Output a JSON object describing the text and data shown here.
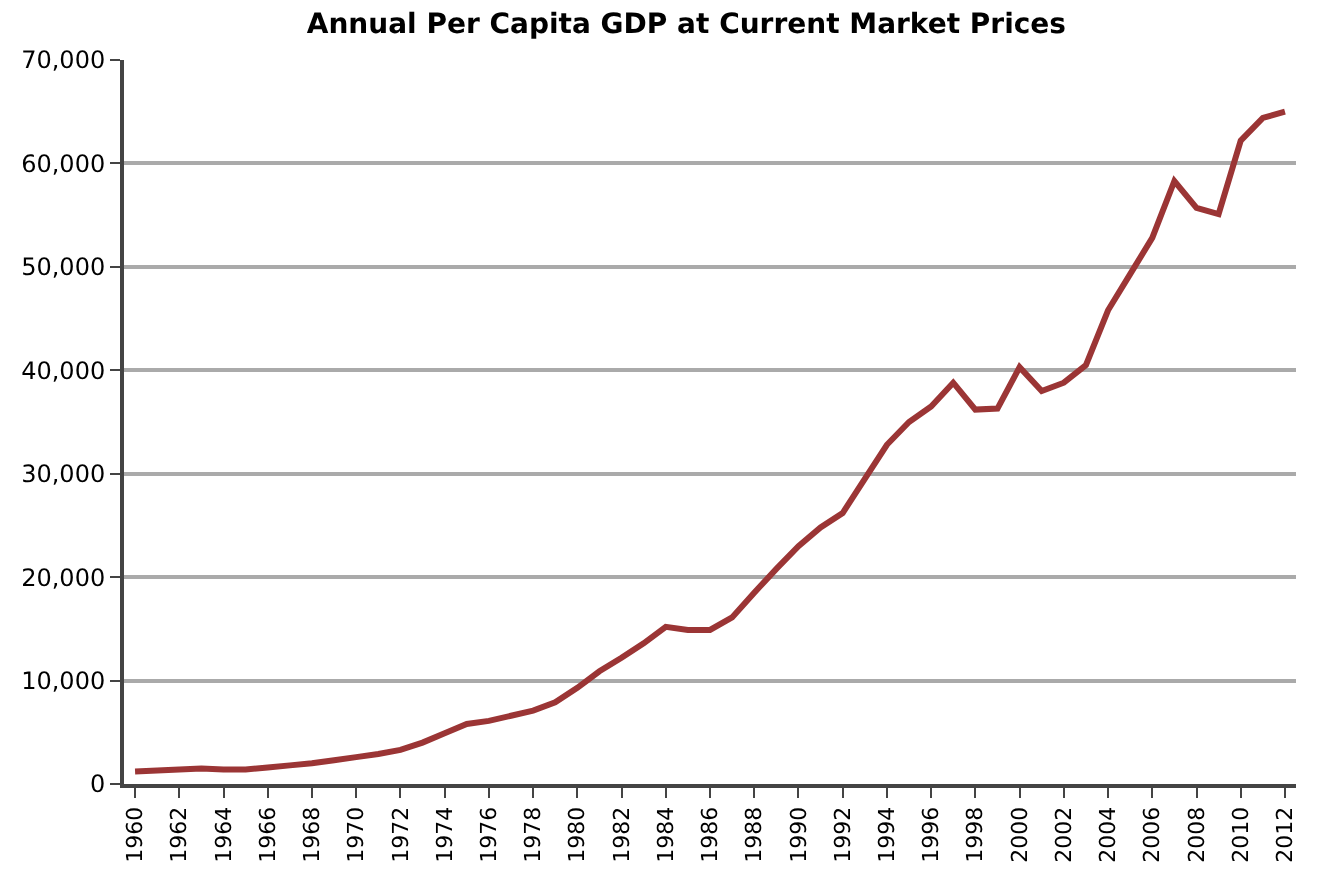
{
  "chart_data": {
    "type": "line",
    "title": "Annual Per Capita GDP at Current Market Prices",
    "x": [
      1960,
      1961,
      1962,
      1963,
      1964,
      1965,
      1966,
      1967,
      1968,
      1969,
      1970,
      1971,
      1972,
      1973,
      1974,
      1975,
      1976,
      1977,
      1978,
      1979,
      1980,
      1981,
      1982,
      1983,
      1984,
      1985,
      1986,
      1987,
      1988,
      1989,
      1990,
      1991,
      1992,
      1993,
      1994,
      1995,
      1996,
      1997,
      1998,
      1999,
      2000,
      2001,
      2002,
      2003,
      2004,
      2005,
      2006,
      2007,
      2008,
      2009,
      2010,
      2011,
      2012
    ],
    "series": [
      {
        "color": "#9b3535",
        "values": [
          1200,
          1300,
          1400,
          1500,
          1400,
          1400,
          1600,
          1800,
          2000,
          2300,
          2600,
          2900,
          3300,
          4000,
          4900,
          5800,
          6100,
          6600,
          7100,
          7900,
          9300,
          10900,
          12200,
          13600,
          15200,
          14900,
          14900,
          16100,
          18500,
          20800,
          23000,
          24800,
          26200,
          29500,
          32800,
          35000,
          36500,
          38800,
          36200,
          36300,
          40300,
          38000,
          38800,
          40500,
          45800,
          49300,
          52800,
          58300,
          55700,
          55100,
          62200,
          64400,
          65000
        ]
      }
    ],
    "xlim": [
      1959.5,
      2012.5
    ],
    "xticks": [
      1960,
      1962,
      1964,
      1966,
      1968,
      1970,
      1972,
      1974,
      1976,
      1978,
      1980,
      1982,
      1984,
      1986,
      1988,
      1990,
      1992,
      1994,
      1996,
      1998,
      2000,
      2002,
      2004,
      2006,
      2008,
      2010,
      2012
    ],
    "ylim": [
      0,
      70000
    ],
    "yticks": [
      {
        "value": 0,
        "label": "0"
      },
      {
        "value": 10000,
        "label": "10,000"
      },
      {
        "value": 20000,
        "label": "20,000"
      },
      {
        "value": 30000,
        "label": "30,000"
      },
      {
        "value": 40000,
        "label": "40,000"
      },
      {
        "value": 50000,
        "label": "50,000"
      },
      {
        "value": 60000,
        "label": "60,000"
      },
      {
        "value": 70000,
        "label": "70,000"
      }
    ],
    "grid": "y",
    "marker": "none",
    "line_style": "solid"
  }
}
